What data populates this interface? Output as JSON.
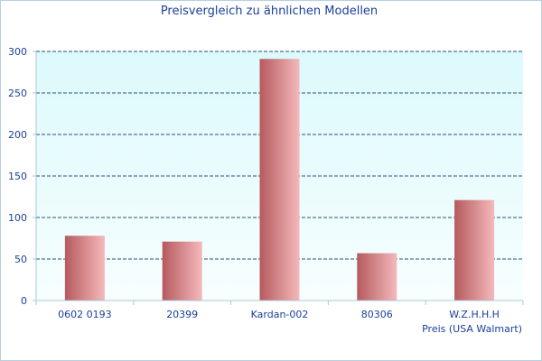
{
  "chart_data": {
    "type": "bar",
    "title": "Preisvergleich zu ähnlichen Modellen",
    "categories": [
      "0602 0193",
      "20399",
      "Kardan-002",
      "80306",
      "W.Z.H.H.H"
    ],
    "series": [
      {
        "name": "Preis (USA Walmart)",
        "values": [
          78,
          71,
          291,
          57,
          121
        ]
      }
    ],
    "xlabel": "",
    "ylabel": "",
    "ylim": [
      0,
      300
    ],
    "yticks": [
      0,
      50,
      100,
      150,
      200,
      250,
      300
    ],
    "grid": true,
    "legend": "bottom-right",
    "colors": {
      "bar_dark": "#b55a5e",
      "bar_light": "#f5b9bb",
      "plot_bg_top": "#dcfafc",
      "plot_bg_bottom": "#f7fefe",
      "grid": "#2a4f7a",
      "text": "#1a3f9a",
      "axis": "#a9c9da"
    }
  }
}
